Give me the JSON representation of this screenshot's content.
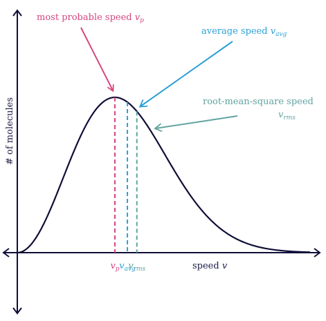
{
  "chart_data": {
    "type": "line",
    "xlabel": "speed",
    "xlabel_symbol": "v",
    "ylabel": "# of molecules",
    "grid": false,
    "legend": "none",
    "curve": {
      "shape": "maxwell-boltzmann",
      "x_max": 3.0,
      "y_peak": 1.0
    },
    "markers": [
      {
        "key": "vp",
        "tick_label": "v",
        "tick_sub": "p",
        "annotation": "most probable speed",
        "annotation_symbol": "v",
        "annotation_sub": "p",
        "value": 1.0,
        "color": "#d6467f"
      },
      {
        "key": "vavg",
        "tick_label": "v",
        "tick_sub": "avg",
        "annotation": "average speed",
        "annotation_symbol": "v",
        "annotation_sub": "avg",
        "value": 1.128,
        "color": "#2a9fd6"
      },
      {
        "key": "vrms",
        "tick_label": "v",
        "tick_sub": "rms",
        "annotation": "root-mean-square speed",
        "annotation_symbol": "v",
        "annotation_sub": "rms",
        "value": 1.225,
        "color": "#5fa3a0"
      }
    ],
    "colors": {
      "curve": "#0e0e38",
      "axes": "#0e0e38"
    }
  }
}
